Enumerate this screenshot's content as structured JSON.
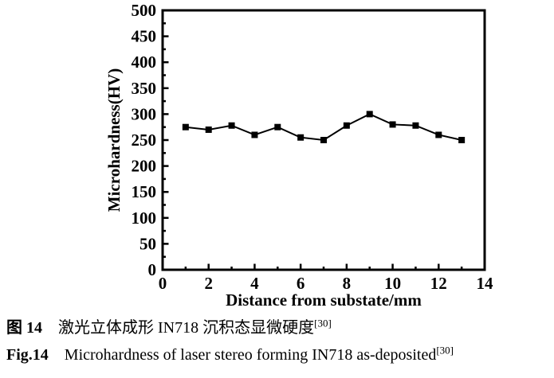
{
  "figure": {
    "caption_zh": {
      "label": "图 14",
      "text": "激光立体成形 IN718 沉积态显微硬度",
      "ref": "[30]"
    },
    "caption_en": {
      "label": "Fig.14",
      "text": "Microhardness of laser stereo forming IN718 as-deposited",
      "ref": "[30]"
    }
  },
  "chart_data": {
    "type": "line",
    "title": "",
    "xlabel": "Distance from substate/mm",
    "ylabel": "Microhardness(HV)",
    "x": [
      1,
      2,
      3,
      4,
      5,
      6,
      7,
      8,
      9,
      10,
      11,
      12,
      13
    ],
    "values": [
      275,
      270,
      278,
      260,
      275,
      255,
      250,
      278,
      300,
      280,
      278,
      260,
      250
    ],
    "xlim": [
      0,
      14
    ],
    "ylim": [
      0,
      500
    ],
    "xticks": {
      "major_step": 2,
      "minor_step": 1
    },
    "yticks": {
      "major_step": 50,
      "minor_step": 25
    },
    "marker": "square",
    "line_color": "#000000",
    "marker_color": "#000000",
    "background_color": "#ffffff",
    "grid": false,
    "legend": false
  }
}
